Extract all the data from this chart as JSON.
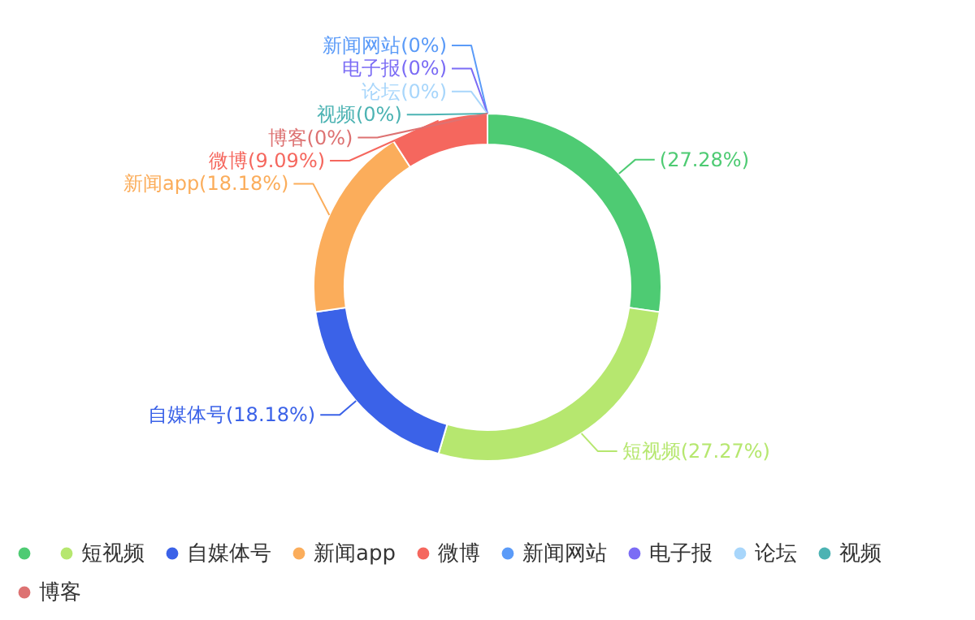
{
  "chart_data": {
    "type": "donut",
    "categories": [
      null,
      "短视频",
      "自媒体号",
      "新闻app",
      "微博",
      "新闻网站",
      "电子报",
      "论坛",
      "视频",
      "博客"
    ],
    "values": [
      27.28,
      27.27,
      18.18,
      18.18,
      9.09,
      0,
      0,
      0,
      0,
      0
    ],
    "colors": [
      "#4ecb73",
      "#b6e76f",
      "#3b62e8",
      "#fbad5b",
      "#f5675e",
      "#5b9bf8",
      "#7b6cf5",
      "#a8d6fb",
      "#4cb3b3",
      "#dd7272"
    ],
    "value_labels": [
      "(27.28%)",
      "(27.27%)",
      "(18.18%)",
      "(18.18%)",
      "(9.09%)",
      "(0%)",
      "(0%)",
      "(0%)",
      "(0%)",
      "(0%)"
    ],
    "legend": "bottom"
  }
}
